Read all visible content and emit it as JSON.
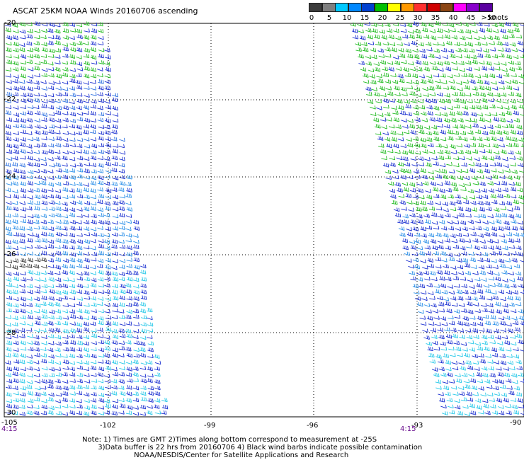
{
  "title": "ASCAT 25KM NOAA Winds 20160706 ascending",
  "legend": {
    "colors": [
      "#3c3c3c",
      "#7f7f7f",
      "#00c8ff",
      "#0088ff",
      "#0040d0",
      "#00c000",
      "#ffff00",
      "#ff9900",
      "#ff3030",
      "#d00000",
      "#8b4513",
      "#ff00ff",
      "#8800cc",
      "#5a00a0"
    ],
    "labels": [
      "0",
      "5",
      "10",
      "15",
      "20",
      "25",
      "30",
      "35",
      "40",
      "45",
      ">50"
    ],
    "unit": "knots"
  },
  "axes": {
    "lon_labels": [
      "-105",
      "-102",
      "-99",
      "-96",
      "-93",
      "-90"
    ],
    "lat_labels": [
      "-20",
      "-22",
      "-24",
      "-26",
      "-28",
      "-30"
    ]
  },
  "pass_times": [
    "4:15",
    "4:15"
  ],
  "note_lines": [
    "Note: 1) Times are GMT 2)Times along bottom correspond to measurement at -25S",
    "       3)Data buffer is 22 hrs from 20160706 4) Black wind barbs indicate possible contamination",
    "                       NOAA/NESDIS/Center for Satellite Applications and Research"
  ]
}
